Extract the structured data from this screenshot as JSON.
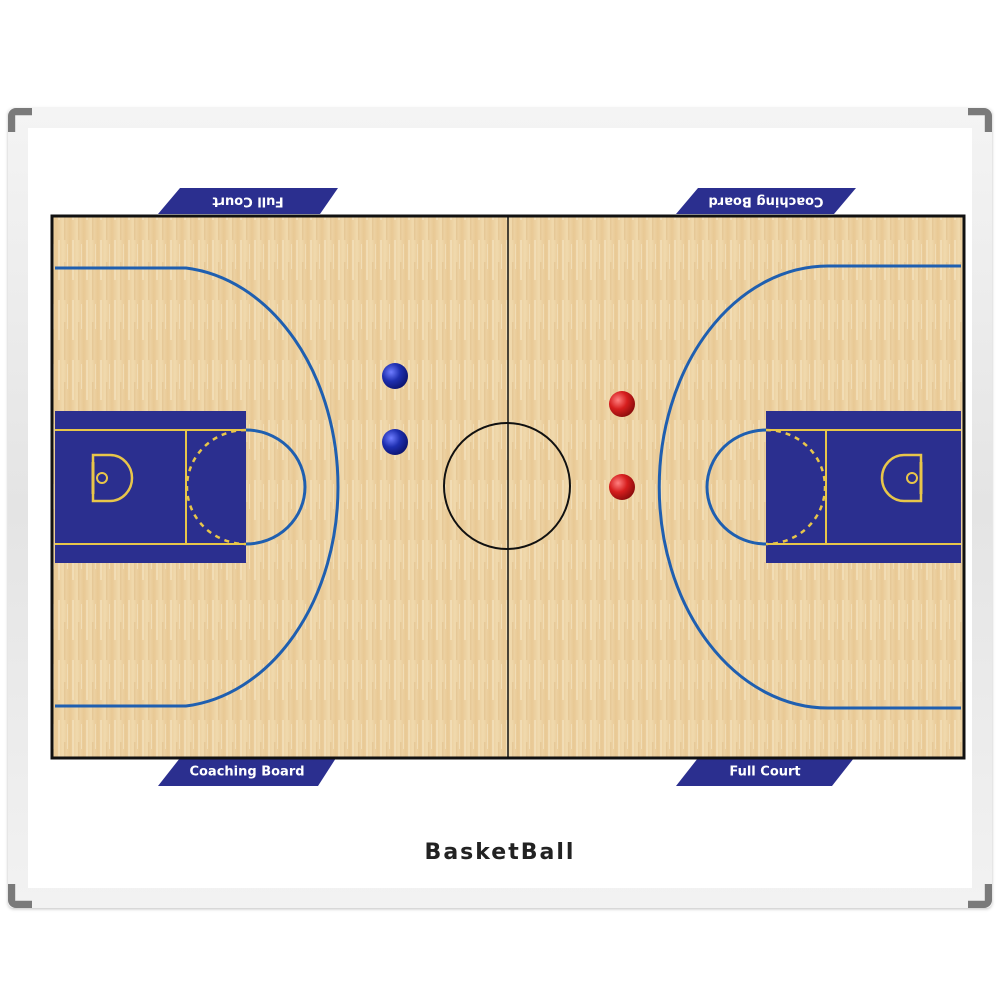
{
  "board": {
    "title": "BasketBall",
    "tabs": {
      "top_left": "Full Court",
      "top_right": "Coaching Board",
      "bottom_left": "Coaching Board",
      "bottom_right": "Full Court"
    }
  },
  "magnets": {
    "blue_color": "#1e2fb0",
    "red_color": "#d61e1e"
  },
  "colors": {
    "court_wood": "#ebcf9f",
    "paint": "#2b2f8f",
    "court_lines": "#1f5fb0",
    "key_lines": "#e8c64a",
    "tab_fill": "#2b2f8f"
  }
}
